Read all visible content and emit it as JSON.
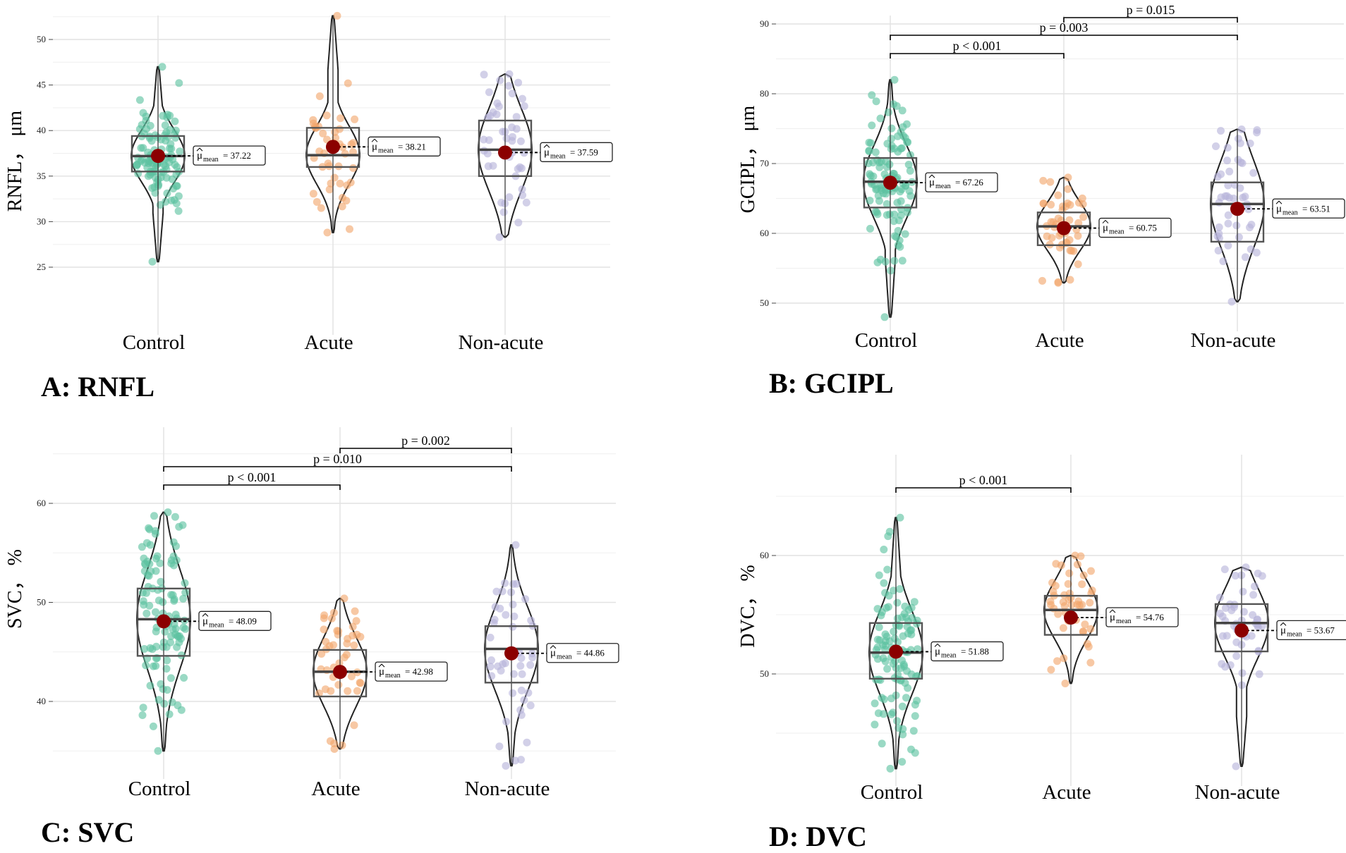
{
  "chart_data": [
    {
      "panel": "A: RNFL",
      "type": "violin",
      "ylabel": "RNFL， μm",
      "ylim": [
        24,
        53
      ],
      "yticks": [
        25,
        30,
        35,
        40,
        45,
        50
      ],
      "categories": [
        "Control",
        "Acute",
        "Non-acute"
      ],
      "groups": [
        {
          "name": "Control",
          "mean": 37.22,
          "mean_label": "= 37.22",
          "median": 37.2,
          "q1": 35.5,
          "q3": 39.4,
          "min": 25.6,
          "max": 47.0
        },
        {
          "name": "Acute",
          "mean": 38.21,
          "mean_label": "= 38.21",
          "median": 37.3,
          "q1": 36.0,
          "q3": 40.3,
          "min": 28.8,
          "max": 52.6
        },
        {
          "name": "Non-acute",
          "mean": 37.59,
          "mean_label": "= 37.59",
          "median": 37.9,
          "q1": 35.0,
          "q3": 41.1,
          "min": 28.3,
          "max": 46.2
        }
      ],
      "comparisons": []
    },
    {
      "panel": "B: GCIPL",
      "type": "violin",
      "ylabel": "GCIPL， μm",
      "ylim": [
        47,
        92
      ],
      "yticks": [
        50,
        60,
        70,
        80,
        90
      ],
      "categories": [
        "Control",
        "Acute",
        "Non-acute"
      ],
      "groups": [
        {
          "name": "Control",
          "mean": 67.26,
          "mean_label": "= 67.26",
          "median": 67.4,
          "q1": 63.7,
          "q3": 70.8,
          "min": 48.0,
          "max": 82.0
        },
        {
          "name": "Acute",
          "mean": 60.75,
          "mean_label": "= 60.75",
          "median": 61.0,
          "q1": 58.3,
          "q3": 63.0,
          "min": 52.9,
          "max": 68.0
        },
        {
          "name": "Non-acute",
          "mean": 63.51,
          "mean_label": "= 63.51",
          "median": 64.2,
          "q1": 58.8,
          "q3": 67.3,
          "min": 50.2,
          "max": 74.9
        }
      ],
      "comparisons": [
        {
          "from": 0,
          "to": 1,
          "label": "p < 0.001"
        },
        {
          "from": 0,
          "to": 2,
          "label": "p = 0.003"
        },
        {
          "from": 1,
          "to": 2,
          "label": "p = 0.015"
        }
      ]
    },
    {
      "panel": "C: SVC",
      "type": "violin",
      "ylabel": "SVC， %",
      "ylim": [
        33,
        66
      ],
      "yticks": [
        40,
        50,
        60
      ],
      "categories": [
        "Control",
        "Acute",
        "Non-acute"
      ],
      "groups": [
        {
          "name": "Control",
          "mean": 48.09,
          "mean_label": "= 48.09",
          "median": 48.3,
          "q1": 44.6,
          "q3": 51.4,
          "min": 35.0,
          "max": 59.1
        },
        {
          "name": "Acute",
          "mean": 42.98,
          "mean_label": "= 42.98",
          "median": 43.0,
          "q1": 40.5,
          "q3": 45.2,
          "min": 35.2,
          "max": 50.4
        },
        {
          "name": "Non-acute",
          "mean": 44.86,
          "mean_label": "= 44.86",
          "median": 45.3,
          "q1": 41.9,
          "q3": 47.6,
          "min": 33.5,
          "max": 55.8
        }
      ],
      "comparisons": [
        {
          "from": 0,
          "to": 1,
          "label": "p < 0.001"
        },
        {
          "from": 0,
          "to": 2,
          "label": "p = 0.010"
        },
        {
          "from": 1,
          "to": 2,
          "label": "p = 0.002"
        }
      ]
    },
    {
      "panel": "D: DVC",
      "type": "violin",
      "ylabel": "DVC， %",
      "ylim": [
        41,
        66
      ],
      "yticks": [
        50,
        60
      ],
      "categories": [
        "Control",
        "Acute",
        "Non-acute"
      ],
      "groups": [
        {
          "name": "Control",
          "mean": 51.88,
          "mean_label": "= 51.88",
          "median": 51.8,
          "q1": 49.6,
          "q3": 54.3,
          "min": 42.0,
          "max": 63.2
        },
        {
          "name": "Acute",
          "mean": 54.76,
          "mean_label": "= 54.76",
          "median": 55.4,
          "q1": 53.3,
          "q3": 56.6,
          "min": 49.2,
          "max": 60.0
        },
        {
          "name": "Non-acute",
          "mean": 53.67,
          "mean_label": "= 53.67",
          "median": 54.3,
          "q1": 51.9,
          "q3": 55.9,
          "min": 42.2,
          "max": 59.0
        }
      ],
      "comparisons": [
        {
          "from": 0,
          "to": 1,
          "label": "p < 0.001"
        }
      ]
    }
  ],
  "colors": {
    "control": "#5cc1a0",
    "acute": "#f2a66c",
    "nonacute": "#b7b3da",
    "mean_point": "#8b0000",
    "grid": "#e4e4e4"
  },
  "mean_symbol_main": "μ",
  "mean_symbol_sub": "mean"
}
